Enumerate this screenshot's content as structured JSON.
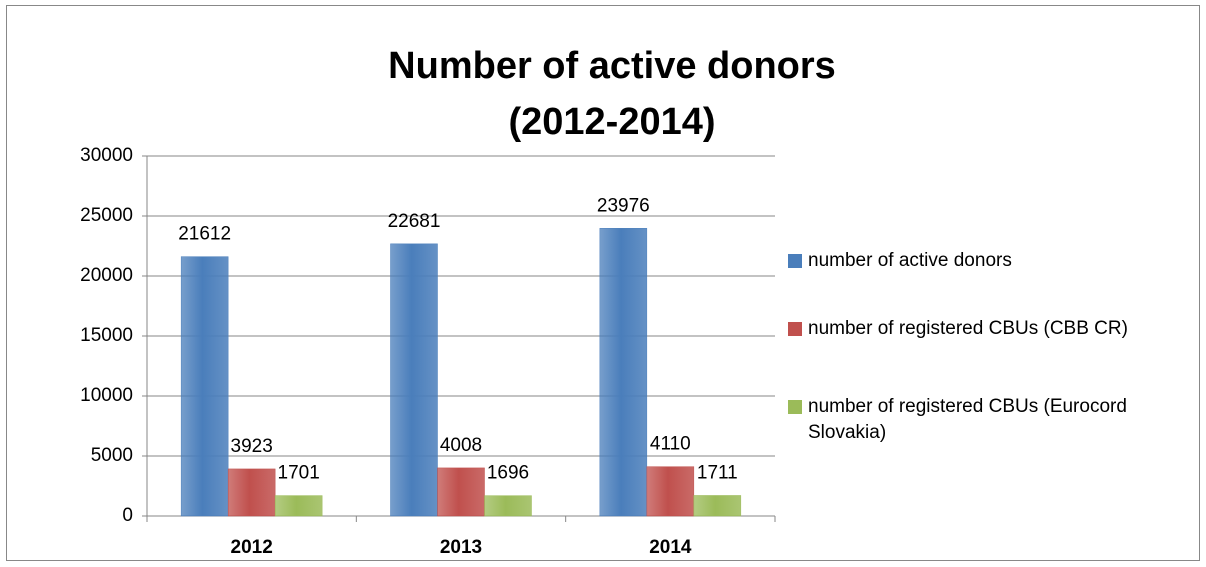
{
  "chart_data": {
    "type": "bar",
    "title": "Number of active donors (2012-2014)",
    "categories": [
      "2012",
      "2013",
      "2014"
    ],
    "series": [
      {
        "name": "number of active donors",
        "color": "#4a7ebb",
        "values": [
          21612,
          22681,
          23976
        ]
      },
      {
        "name": "number of registered CBUs (CBB CR)",
        "color": "#c0504d",
        "values": [
          3923,
          4008,
          4110
        ]
      },
      {
        "name": "number of registered CBUs (Eurocord Slovakia)",
        "color": "#9bbb59",
        "values": [
          1701,
          1696,
          1711
        ]
      }
    ],
    "ylim": [
      0,
      30000
    ],
    "yticks": [
      0,
      5000,
      10000,
      15000,
      20000,
      25000,
      30000
    ],
    "grid": true,
    "legend": "right"
  }
}
